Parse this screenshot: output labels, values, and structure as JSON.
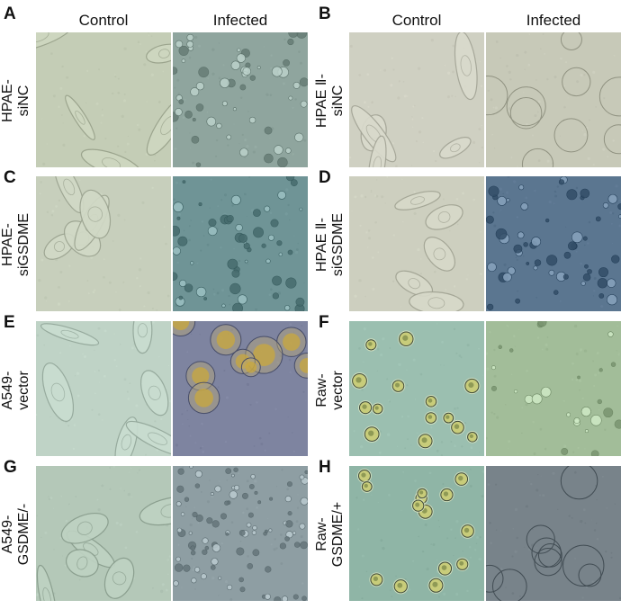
{
  "figure": {
    "column_headers": [
      "Control",
      "Infected"
    ],
    "panels": [
      {
        "letter": "A",
        "row_label": "HPAE-\nsiNC",
        "control": {
          "tint": "#c4cdb6",
          "cell_type": "spread-cells"
        },
        "infected": {
          "tint": "#8fa59e",
          "cell_type": "pyroptotic-clusters"
        }
      },
      {
        "letter": "B",
        "row_label": "HPAE Ⅱ-\nsiNC",
        "control": {
          "tint": "#cfd0c2",
          "cell_type": "spread-cells"
        },
        "infected": {
          "tint": "#c7c9b8",
          "cell_type": "swollen-bubbles"
        }
      },
      {
        "letter": "C",
        "row_label": "HPAE-\nsiGSDME",
        "control": {
          "tint": "#c7cfbc",
          "cell_type": "spread-cells"
        },
        "infected": {
          "tint": "#6f9496",
          "cell_type": "shrunken-clusters"
        }
      },
      {
        "letter": "D",
        "row_label": "HPAE Ⅱ-\nsiGSDME",
        "control": {
          "tint": "#cdcfbf",
          "cell_type": "spread-cells"
        },
        "infected": {
          "tint": "#5b7690",
          "cell_type": "shrunken-clusters"
        }
      },
      {
        "letter": "E",
        "row_label": "A549-\nvector",
        "control": {
          "tint": "#bfd3c6",
          "cell_type": "elongated-cells"
        },
        "infected": {
          "tint": "#7e84a0",
          "cell_type": "swollen-yellow"
        }
      },
      {
        "letter": "F",
        "row_label": "Raw-\nvector",
        "control": {
          "tint": "#9bbfb0",
          "cell_type": "round-cells"
        },
        "infected": {
          "tint": "#a2bd99",
          "cell_type": "sparse-debris"
        }
      },
      {
        "letter": "G",
        "row_label": "A549-\nGSDME/-",
        "control": {
          "tint": "#b4c8b8",
          "cell_type": "elongated-cells"
        },
        "infected": {
          "tint": "#8e9ea3",
          "cell_type": "dense-debris"
        }
      },
      {
        "letter": "H",
        "row_label": "Raw-\nGSDME/+",
        "control": {
          "tint": "#8fb5a6",
          "cell_type": "round-cells"
        },
        "infected": {
          "tint": "#78838a",
          "cell_type": "swollen-bubbles"
        }
      }
    ]
  }
}
